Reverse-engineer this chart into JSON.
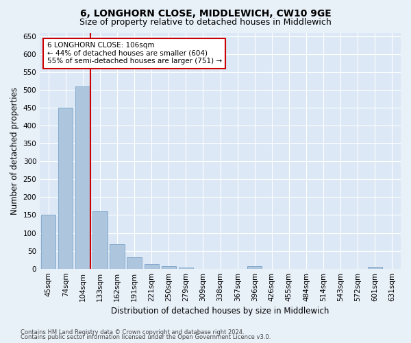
{
  "title": "6, LONGHORN CLOSE, MIDDLEWICH, CW10 9GE",
  "subtitle": "Size of property relative to detached houses in Middlewich",
  "xlabel": "Distribution of detached houses by size in Middlewich",
  "ylabel": "Number of detached properties",
  "categories": [
    "45sqm",
    "74sqm",
    "104sqm",
    "133sqm",
    "162sqm",
    "191sqm",
    "221sqm",
    "250sqm",
    "279sqm",
    "309sqm",
    "338sqm",
    "367sqm",
    "396sqm",
    "426sqm",
    "455sqm",
    "484sqm",
    "514sqm",
    "543sqm",
    "572sqm",
    "601sqm",
    "631sqm"
  ],
  "values": [
    150,
    450,
    510,
    160,
    68,
    32,
    13,
    8,
    4,
    0,
    0,
    0,
    7,
    0,
    0,
    0,
    0,
    0,
    0,
    5,
    0
  ],
  "bar_color": "#adc6de",
  "bar_edgecolor": "#7aa3c8",
  "vline_x_index": 2,
  "vline_color": "#cc0000",
  "annotation_line1": "6 LONGHORN CLOSE: 106sqm",
  "annotation_line2": "← 44% of detached houses are smaller (604)",
  "annotation_line3": "55% of semi-detached houses are larger (751) →",
  "annotation_box_color": "#cc0000",
  "ylim": [
    0,
    660
  ],
  "yticks": [
    0,
    50,
    100,
    150,
    200,
    250,
    300,
    350,
    400,
    450,
    500,
    550,
    600,
    650
  ],
  "footer1": "Contains HM Land Registry data © Crown copyright and database right 2024.",
  "footer2": "Contains public sector information licensed under the Open Government Licence v3.0.",
  "bg_color": "#e8f0f8",
  "plot_bg_color": "#dce8f5",
  "title_fontsize": 10,
  "subtitle_fontsize": 9,
  "tick_fontsize": 7.5,
  "ylabel_fontsize": 8.5,
  "xlabel_fontsize": 8.5,
  "footer_fontsize": 6,
  "annotation_fontsize": 7.5
}
